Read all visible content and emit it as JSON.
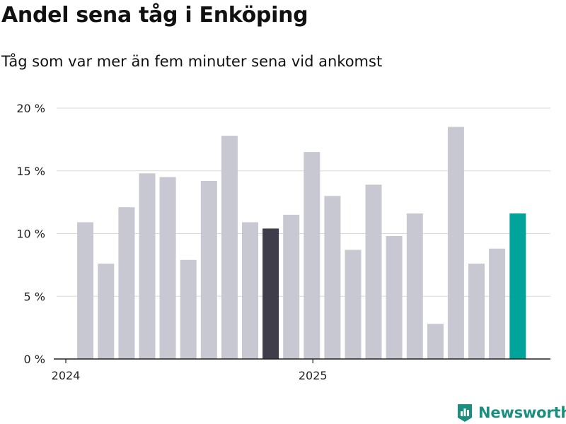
{
  "chart_data": {
    "type": "bar",
    "title": "Andel sena tåg i Enköping",
    "subtitle": "Tåg som var mer än fem minuter sena vid ankomst",
    "xlabel": "",
    "ylabel": "",
    "ylim": [
      0,
      20
    ],
    "yticks": [
      0,
      5,
      10,
      15,
      20
    ],
    "ytick_labels": [
      "0 %",
      "5 %",
      "10 %",
      "15 %",
      "20 %"
    ],
    "xtick_labels": [
      "2024",
      "2025"
    ],
    "categories": [
      "2024-01",
      "2024-02",
      "2024-03",
      "2024-04",
      "2024-05",
      "2024-06",
      "2024-07",
      "2024-08",
      "2024-09",
      "2024-10",
      "2024-11",
      "2024-12",
      "2025-01",
      "2025-02",
      "2025-03",
      "2025-04",
      "2025-05",
      "2025-06",
      "2025-07",
      "2025-08",
      "2025-09",
      "2025-10",
      "2025-11",
      "2025-12"
    ],
    "values": [
      0,
      10.9,
      7.6,
      12.1,
      14.8,
      14.5,
      7.9,
      14.2,
      17.8,
      10.9,
      10.4,
      11.5,
      16.5,
      13.0,
      8.7,
      13.9,
      9.8,
      11.6,
      2.8,
      18.5,
      7.6,
      8.8,
      11.6,
      0
    ],
    "highlight_index": 10,
    "latest_index": 22,
    "colors": {
      "default": "#c8c8d2",
      "highlight": "#3f3d4a",
      "latest": "#00a49a"
    },
    "grid": true,
    "legend": "none"
  },
  "brand": {
    "name": "Newsworthy",
    "color": "#1b8f7f",
    "logo_icon": "newsworthy-logo-icon"
  }
}
